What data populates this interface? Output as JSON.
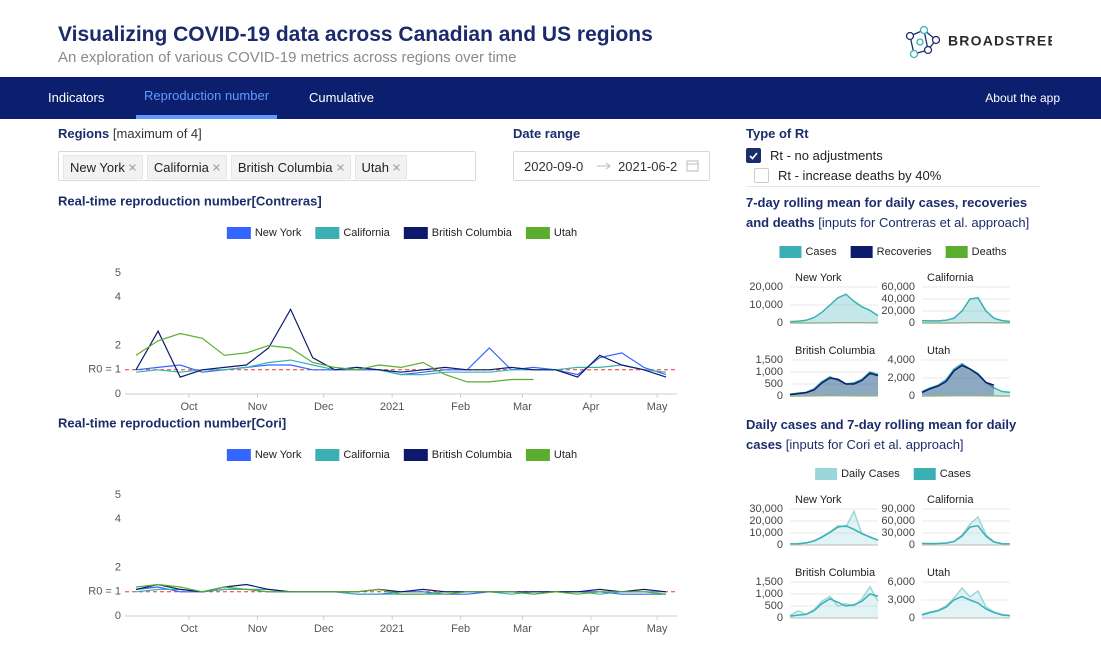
{
  "header": {
    "title": "Visualizing COVID-19 data across Canadian and US regions",
    "subtitle": "An exploration of various COVID-19 metrics across regions over time"
  },
  "logo": {
    "text": "BROADSTREET"
  },
  "nav": {
    "tabs": [
      "Indicators",
      "Reproduction number",
      "Cumulative"
    ],
    "active": 1,
    "right_link": "About the app"
  },
  "controls": {
    "regions_label": "Regions",
    "regions_note": "[maximum of 4]",
    "regions": [
      "New York",
      "California",
      "British Columbia",
      "Utah"
    ],
    "date_range_label": "Date range",
    "date_start": "2020-09-0",
    "date_end": "2021-06-2",
    "rt_type_label": "Type of Rt",
    "rt_options": [
      {
        "label": "Rt - no adjustments",
        "checked": true
      },
      {
        "label": "Rt - increase deaths by 40%",
        "checked": false
      }
    ]
  },
  "panels": [
    {
      "title": "7-day rolling mean for daily cases, recoveries and deaths",
      "note": "[inputs for Contreras et al. approach]"
    },
    {
      "title": "Daily cases and 7-day rolling mean for daily cases",
      "note": "[inputs for Cori et al. approach]"
    }
  ],
  "chart_data": [
    {
      "type": "line",
      "title": "Real-time reproduction number[Contreras]",
      "legend": "top",
      "x": [
        5,
        15,
        25,
        35,
        45,
        55,
        65,
        75,
        85,
        95,
        105,
        115,
        125,
        135,
        145,
        155,
        165,
        175,
        185,
        195,
        205,
        215,
        225,
        235,
        245
      ],
      "xlim": [
        0,
        250
      ],
      "xticks": [
        {
          "value": 29,
          "label": "Oct"
        },
        {
          "value": 60,
          "label": "Nov"
        },
        {
          "value": 90,
          "label": "Dec"
        },
        {
          "value": 121,
          "label": "2021"
        },
        {
          "value": 152,
          "label": "Feb"
        },
        {
          "value": 180,
          "label": "Mar"
        },
        {
          "value": 211,
          "label": "Apr"
        },
        {
          "value": 241,
          "label": "May"
        }
      ],
      "ylim": [
        0,
        5
      ],
      "yticks": [
        0,
        {
          "value": 1,
          "label": "R0 = 1"
        },
        2,
        4,
        5
      ],
      "reference_line": {
        "value": 1,
        "color": "#e23a2e"
      },
      "series": [
        {
          "name": "New York",
          "color": "#3366ff",
          "values": [
            1.0,
            1.1,
            1.2,
            0.9,
            1.0,
            1.1,
            1.2,
            1.2,
            1.0,
            1.0,
            1.0,
            1.0,
            0.8,
            0.9,
            1.0,
            1.0,
            1.9,
            1.0,
            1.1,
            1.0,
            0.8,
            1.5,
            1.7,
            1.1,
            0.8
          ]
        },
        {
          "name": "California",
          "color": "#3ab0b5",
          "values": [
            0.9,
            1.0,
            0.9,
            1.0,
            1.0,
            1.1,
            1.3,
            1.4,
            1.2,
            1.0,
            1.1,
            1.0,
            0.8,
            0.8,
            0.9,
            0.9,
            0.9,
            1.0,
            1.0,
            1.0,
            1.1,
            1.1,
            1.2,
            1.0,
            0.9
          ]
        },
        {
          "name": "British Columbia",
          "color": "#0d1a6b",
          "values": [
            1.0,
            2.6,
            0.7,
            1.0,
            1.1,
            1.2,
            1.9,
            3.5,
            1.5,
            1.0,
            1.1,
            1.0,
            0.9,
            1.0,
            1.1,
            1.0,
            1.0,
            1.1,
            1.0,
            1.0,
            0.7,
            1.6,
            1.2,
            1.0,
            0.7
          ]
        },
        {
          "name": "Utah",
          "color": "#5aad2f",
          "values": [
            1.6,
            2.2,
            2.5,
            2.3,
            1.6,
            1.7,
            2.0,
            1.9,
            1.3,
            1.1,
            1.0,
            1.2,
            1.1,
            1.3,
            0.8,
            0.5,
            0.5,
            0.6,
            0.6,
            null,
            null,
            null,
            null,
            null,
            null
          ]
        }
      ]
    },
    {
      "type": "line",
      "title": "Real-time reproduction number[Cori]",
      "legend": "top",
      "x": [
        5,
        15,
        25,
        35,
        45,
        55,
        65,
        75,
        85,
        95,
        105,
        115,
        125,
        135,
        145,
        155,
        165,
        175,
        185,
        195,
        205,
        215,
        225,
        235,
        245
      ],
      "xlim": [
        0,
        250
      ],
      "xticks": [
        {
          "value": 29,
          "label": "Oct"
        },
        {
          "value": 60,
          "label": "Nov"
        },
        {
          "value": 90,
          "label": "Dec"
        },
        {
          "value": 121,
          "label": "2021"
        },
        {
          "value": 152,
          "label": "Feb"
        },
        {
          "value": 180,
          "label": "Mar"
        },
        {
          "value": 211,
          "label": "Apr"
        },
        {
          "value": 241,
          "label": "May"
        }
      ],
      "ylim": [
        0,
        5
      ],
      "yticks": [
        0,
        {
          "value": 1,
          "label": "R0 = 1"
        },
        2,
        4,
        5
      ],
      "reference_line": {
        "value": 1,
        "color": "#e23a2e"
      },
      "series": [
        {
          "name": "New York",
          "color": "#3366ff",
          "values": [
            1.1,
            1.2,
            1.0,
            1.0,
            1.1,
            1.1,
            1.0,
            1.0,
            1.0,
            1.0,
            0.9,
            0.9,
            1.0,
            1.0,
            0.9,
            0.9,
            1.0,
            1.0,
            0.9,
            1.0,
            1.0,
            1.0,
            0.9,
            0.9,
            0.9
          ]
        },
        {
          "name": "California",
          "color": "#3ab0b5",
          "values": [
            1.0,
            1.1,
            1.1,
            1.0,
            1.1,
            1.1,
            1.1,
            1.0,
            1.0,
            1.0,
            0.9,
            0.9,
            0.9,
            0.9,
            1.0,
            1.0,
            1.0,
            0.9,
            1.0,
            1.0,
            1.0,
            0.9,
            1.0,
            1.0,
            1.0
          ]
        },
        {
          "name": "British Columbia",
          "color": "#0d1a6b",
          "values": [
            1.1,
            1.3,
            1.1,
            1.0,
            1.2,
            1.3,
            1.1,
            1.0,
            1.0,
            1.0,
            1.0,
            1.1,
            1.0,
            1.1,
            1.0,
            1.0,
            1.0,
            1.0,
            1.0,
            1.0,
            1.0,
            1.1,
            1.0,
            1.1,
            1.0
          ]
        },
        {
          "name": "Utah",
          "color": "#5aad2f",
          "values": [
            1.2,
            1.3,
            1.2,
            1.0,
            1.2,
            1.1,
            1.0,
            1.0,
            1.0,
            1.0,
            1.0,
            1.1,
            0.9,
            0.9,
            0.9,
            1.0,
            1.0,
            1.0,
            0.9,
            1.0,
            0.9,
            1.0,
            1.0,
            1.0,
            0.9
          ]
        }
      ]
    },
    {
      "type": "area",
      "title": "New York",
      "ylim": [
        0,
        20000
      ],
      "yticks": [
        0,
        {
          "value": 10000,
          "label": "10,000"
        },
        {
          "value": 20000,
          "label": "20,000"
        }
      ],
      "grid": true,
      "series": [
        {
          "name": "Cases",
          "color": "#3ab0b5",
          "fill": true,
          "values": [
            800,
            1000,
            1500,
            3000,
            6000,
            10000,
            14000,
            16000,
            12000,
            9000,
            7000,
            4000
          ]
        },
        {
          "name": "Recoveries",
          "color": "#0d1a6b",
          "fill": true,
          "values": [
            null,
            null,
            null,
            null,
            null,
            null,
            null,
            null,
            null,
            null,
            null,
            null
          ]
        },
        {
          "name": "Deaths",
          "color": "#5aad2f",
          "fill": false,
          "values": [
            20,
            15,
            15,
            20,
            40,
            80,
            120,
            150,
            120,
            90,
            70,
            40
          ]
        }
      ]
    },
    {
      "type": "area",
      "title": "California",
      "ylim": [
        0,
        60000
      ],
      "yticks": [
        0,
        {
          "value": 20000,
          "label": "20,000"
        },
        {
          "value": 40000,
          "label": "40,000"
        },
        {
          "value": 60000,
          "label": "60,000"
        }
      ],
      "grid": true,
      "series": [
        {
          "name": "Cases",
          "color": "#3ab0b5",
          "fill": true,
          "values": [
            4000,
            3500,
            3500,
            4500,
            8000,
            20000,
            40000,
            42000,
            20000,
            8000,
            4000,
            2500
          ]
        },
        {
          "name": "Recoveries",
          "color": "#0d1a6b",
          "fill": true,
          "values": [
            null,
            null,
            null,
            null,
            null,
            null,
            null,
            null,
            null,
            null,
            null,
            null
          ]
        },
        {
          "name": "Deaths",
          "color": "#5aad2f",
          "fill": false,
          "values": [
            80,
            60,
            50,
            60,
            80,
            150,
            400,
            550,
            400,
            200,
            100,
            50
          ]
        }
      ]
    },
    {
      "type": "area",
      "title": "British Columbia",
      "ylim": [
        0,
        1500
      ],
      "yticks": [
        0,
        500,
        {
          "value": 1000,
          "label": "1,000"
        },
        {
          "value": 1500,
          "label": "1,500"
        }
      ],
      "grid": true,
      "series": [
        {
          "name": "Cases",
          "color": "#3ab0b5",
          "fill": true,
          "values": [
            80,
            120,
            150,
            300,
            600,
            800,
            650,
            500,
            550,
            700,
            1000,
            900
          ]
        },
        {
          "name": "Recoveries",
          "color": "#0d1a6b",
          "fill": true,
          "values": [
            60,
            100,
            140,
            250,
            550,
            750,
            700,
            500,
            500,
            650,
            950,
            850
          ]
        },
        {
          "name": "Deaths",
          "color": "#5aad2f",
          "fill": false,
          "values": [
            1,
            2,
            2,
            5,
            10,
            15,
            12,
            8,
            6,
            5,
            6,
            5
          ]
        }
      ]
    },
    {
      "type": "area",
      "title": "Utah",
      "ylim": [
        0,
        4000
      ],
      "yticks": [
        0,
        {
          "value": 2000,
          "label": "2,000"
        },
        {
          "value": 4000,
          "label": "4,000"
        }
      ],
      "grid": true,
      "series": [
        {
          "name": "Cases",
          "color": "#3ab0b5",
          "fill": true,
          "values": [
            500,
            900,
            1200,
            1800,
            3000,
            3600,
            3000,
            2500,
            1500,
            900,
            500,
            400
          ]
        },
        {
          "name": "Recoveries",
          "color": "#0d1a6b",
          "fill": true,
          "values": [
            400,
            800,
            1100,
            1600,
            2800,
            3400,
            3000,
            2400,
            1500,
            1200,
            null,
            null
          ]
        },
        {
          "name": "Deaths",
          "color": "#5aad2f",
          "fill": false,
          "values": [
            5,
            5,
            8,
            10,
            20,
            25,
            25,
            20,
            15,
            8,
            5,
            4
          ]
        }
      ]
    },
    {
      "type": "area",
      "title": "New York",
      "ylim": [
        0,
        30000
      ],
      "yticks": [
        0,
        {
          "value": 10000,
          "label": "10,000"
        },
        {
          "value": 20000,
          "label": "20,000"
        },
        {
          "value": 30000,
          "label": "30,000"
        }
      ],
      "grid": true,
      "series": [
        {
          "name": "Daily Cases",
          "color": "#9ad6da",
          "fill": true,
          "values": [
            900,
            1200,
            1800,
            3500,
            7000,
            11000,
            16000,
            15000,
            28000,
            9000,
            7000,
            4000
          ]
        },
        {
          "name": "Cases",
          "color": "#3ab0b5",
          "fill": false,
          "values": [
            800,
            1100,
            1700,
            3300,
            6500,
            10500,
            15000,
            16000,
            13000,
            9500,
            6500,
            4000
          ]
        }
      ]
    },
    {
      "type": "area",
      "title": "California",
      "ylim": [
        0,
        90000
      ],
      "yticks": [
        0,
        {
          "value": 30000,
          "label": "30,000"
        },
        {
          "value": 60000,
          "label": "60,000"
        },
        {
          "value": 90000,
          "label": "90,000"
        }
      ],
      "grid": true,
      "series": [
        {
          "name": "Daily Cases",
          "color": "#9ad6da",
          "fill": true,
          "values": [
            4000,
            3500,
            4000,
            5000,
            9000,
            25000,
            52000,
            70000,
            25000,
            8000,
            3500,
            2500
          ]
        },
        {
          "name": "Cases",
          "color": "#3ab0b5",
          "fill": false,
          "values": [
            3800,
            3500,
            3800,
            4800,
            8500,
            22000,
            45000,
            48000,
            22000,
            7500,
            3300,
            2400
          ]
        }
      ]
    },
    {
      "type": "area",
      "title": "British Columbia",
      "ylim": [
        0,
        1500
      ],
      "yticks": [
        0,
        500,
        {
          "value": 1000,
          "label": "1,000"
        },
        {
          "value": 1500,
          "label": "1,500"
        }
      ],
      "grid": true,
      "series": [
        {
          "name": "Daily Cases",
          "color": "#9ad6da",
          "fill": true,
          "values": [
            100,
            300,
            150,
            350,
            700,
            900,
            500,
            600,
            500,
            800,
            1300,
            700
          ]
        },
        {
          "name": "Cases",
          "color": "#3ab0b5",
          "fill": false,
          "values": [
            80,
            120,
            150,
            300,
            600,
            800,
            650,
            500,
            550,
            700,
            1000,
            900
          ]
        }
      ]
    },
    {
      "type": "area",
      "title": "Utah",
      "ylim": [
        0,
        6000
      ],
      "yticks": [
        0,
        {
          "value": 3000,
          "label": "3,000"
        },
        {
          "value": 6000,
          "label": "6,000"
        }
      ],
      "grid": true,
      "series": [
        {
          "name": "Daily Cases",
          "color": "#9ad6da",
          "fill": true,
          "values": [
            600,
            1000,
            1300,
            2000,
            3300,
            5000,
            3500,
            4500,
            1800,
            1000,
            600,
            400
          ]
        },
        {
          "name": "Cases",
          "color": "#3ab0b5",
          "fill": false,
          "values": [
            500,
            900,
            1200,
            1800,
            3000,
            3600,
            3000,
            2500,
            1500,
            900,
            500,
            400
          ]
        }
      ]
    }
  ]
}
